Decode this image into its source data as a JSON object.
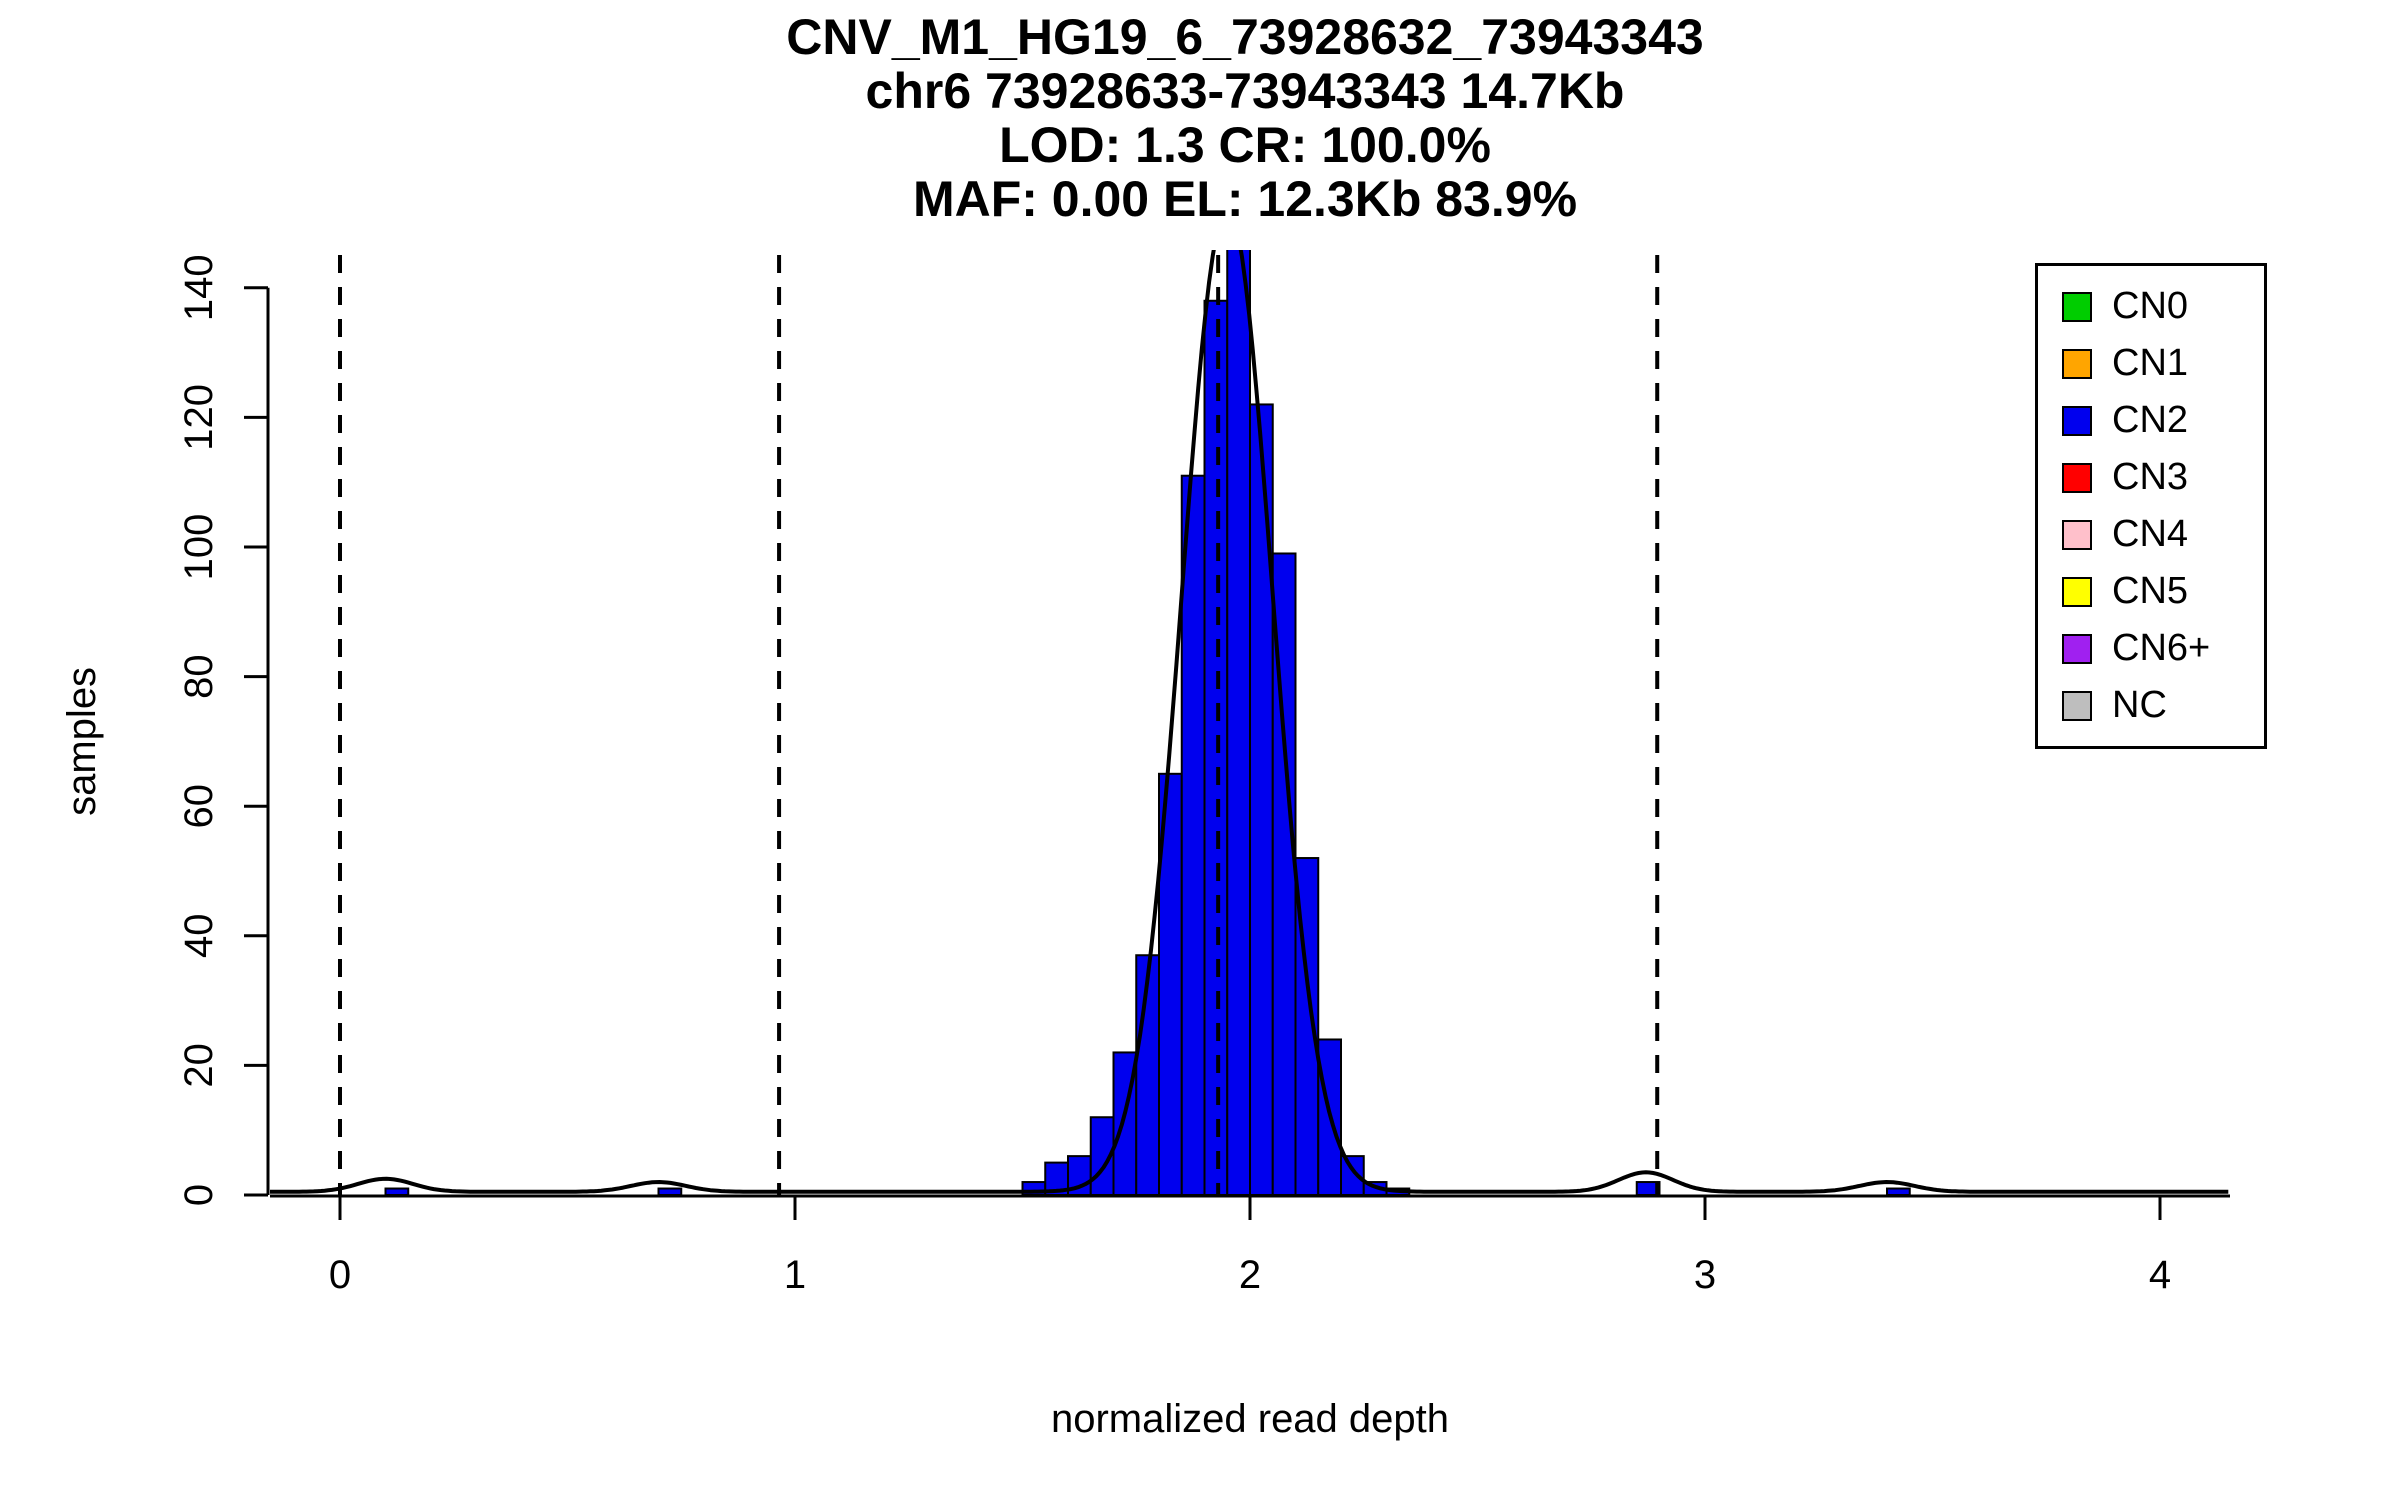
{
  "chart_data": {
    "type": "bar",
    "title": "CNV_M1_HG19_6_73928632_73943343",
    "title_lines": [
      "CNV_M1_HG19_6_73928632_73943343",
      "chr6 73928633-73943343 14.7Kb",
      "LOD: 1.3 CR: 100.0%",
      "MAF: 0.00 EL: 12.3Kb 83.9%"
    ],
    "xlabel": "normalized read depth",
    "ylabel": "samples",
    "xlim": [
      -0.15,
      4.18
    ],
    "ylim": [
      0,
      146
    ],
    "x_ticks": [
      0,
      1,
      2,
      3,
      4
    ],
    "y_ticks": [
      0,
      20,
      40,
      60,
      80,
      100,
      120,
      140
    ],
    "grid": false,
    "bin_width": 0.05,
    "bars": [
      {
        "x": 0.1,
        "count": 1
      },
      {
        "x": 0.7,
        "count": 1
      },
      {
        "x": 1.5,
        "count": 2
      },
      {
        "x": 1.55,
        "count": 5
      },
      {
        "x": 1.6,
        "count": 6
      },
      {
        "x": 1.65,
        "count": 12
      },
      {
        "x": 1.7,
        "count": 22
      },
      {
        "x": 1.75,
        "count": 37
      },
      {
        "x": 1.8,
        "count": 65
      },
      {
        "x": 1.85,
        "count": 111
      },
      {
        "x": 1.9,
        "count": 138
      },
      {
        "x": 1.95,
        "count": 146
      },
      {
        "x": 2.0,
        "count": 122
      },
      {
        "x": 2.05,
        "count": 99
      },
      {
        "x": 2.1,
        "count": 52
      },
      {
        "x": 2.15,
        "count": 24
      },
      {
        "x": 2.2,
        "count": 6
      },
      {
        "x": 2.25,
        "count": 2
      },
      {
        "x": 2.3,
        "count": 1
      },
      {
        "x": 2.85,
        "count": 2
      },
      {
        "x": 3.4,
        "count": 1
      }
    ],
    "bar_color": "#0000EE",
    "bar_border_color": "#000000",
    "dashed_lines_x": [
      0,
      0.965,
      1.93,
      2.895
    ],
    "dashed_line_color": "#000000",
    "density_curve": {
      "color": "#000000",
      "mean": 1.95,
      "sd": 0.1,
      "peak": 152,
      "baseline": 0.5,
      "bump_sd": 0.06,
      "minor_bumps": [
        {
          "x": 0.1,
          "amp": 2
        },
        {
          "x": 0.7,
          "amp": 1.5
        },
        {
          "x": 2.87,
          "amp": 3
        },
        {
          "x": 3.4,
          "amp": 1.5
        }
      ]
    },
    "legend": {
      "position": "top-right",
      "items": [
        {
          "label": "CN0",
          "color": "#00CD00"
        },
        {
          "label": "CN1",
          "color": "#FFA500"
        },
        {
          "label": "CN2",
          "color": "#0000EE"
        },
        {
          "label": "CN3",
          "color": "#FF0000"
        },
        {
          "label": "CN4",
          "color": "#FFC0CB"
        },
        {
          "label": "CN5",
          "color": "#FFFF00"
        },
        {
          "label": "CN6+",
          "color": "#A020F0"
        },
        {
          "label": "NC",
          "color": "#BEBEBE"
        }
      ]
    }
  }
}
